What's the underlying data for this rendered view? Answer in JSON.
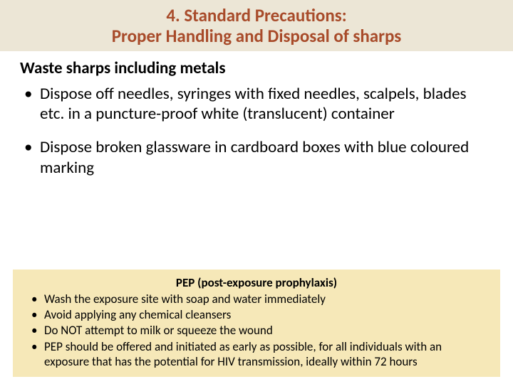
{
  "title": {
    "line1": "4. Standard Precautions:",
    "line2": "Proper Handling and Disposal of sharps"
  },
  "subheading": "Waste sharps including metals",
  "main_bullets": [
    "Dispose off needles, syringes with fixed needles, scalpels, blades etc. in a puncture-proof white (translucent) container",
    "Dispose broken glassware in cardboard boxes with blue coloured marking"
  ],
  "pep": {
    "title": "PEP (post-exposure prophylaxis)",
    "bullets": [
      "Wash the exposure site with soap and water immediately",
      "Avoid applying any chemical cleansers",
      "Do NOT attempt to milk or squeeze the wound",
      "PEP should be offered and initiated as early as possible, for all individuals with an exposure that has the potential for HIV transmission, ideally within 72 hours"
    ]
  },
  "colors": {
    "title_bg": "#ece6d6",
    "title_text": "#a84b2a",
    "pep_bg": "#f6e8b8",
    "body_text": "#000000",
    "page_bg": "#ffffff"
  },
  "fonts": {
    "title_size_pt": 25,
    "subheading_size_pt": 23,
    "body_size_pt": 23,
    "pep_title_size_pt": 17,
    "pep_body_size_pt": 17
  }
}
